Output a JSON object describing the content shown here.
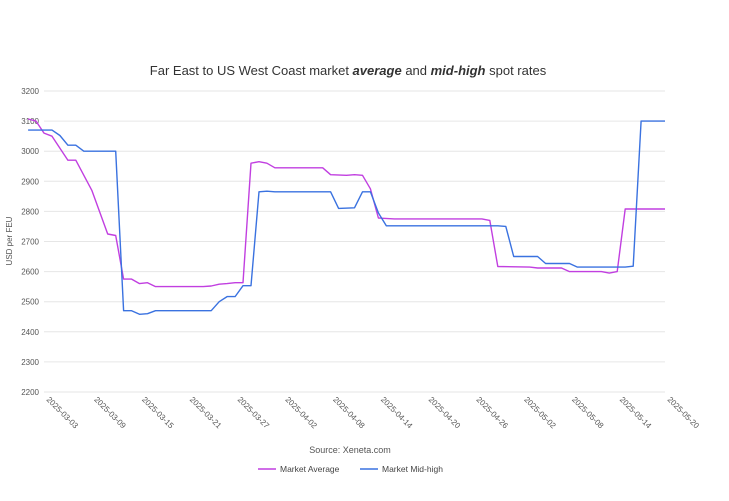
{
  "chart_data": {
    "type": "line",
    "title_parts": [
      {
        "text": "Far East to US West Coast market ",
        "style": "normal"
      },
      {
        "text": "average",
        "style": "bold-italic"
      },
      {
        "text": " and ",
        "style": "normal"
      },
      {
        "text": "mid-high",
        "style": "bold-italic"
      },
      {
        "text": " spot rates",
        "style": "normal"
      }
    ],
    "ylabel": "USD per FEU",
    "source": "Source: Xeneta.com",
    "ylim": [
      2200,
      3200
    ],
    "yticks": [
      "3200",
      "3100",
      "3000",
      "2900",
      "2800",
      "2700",
      "2600",
      "2500",
      "2400",
      "2300",
      "2200"
    ],
    "xlim": [
      "2025-03-03",
      "2025-05-20"
    ],
    "xticks": [
      "2025-03-03",
      "2025-03-09",
      "2025-03-15",
      "2025-03-21",
      "2025-03-27",
      "2025-04-02",
      "2025-04-08",
      "2025-04-14",
      "2025-04-20",
      "2025-04-26",
      "2025-05-02",
      "2025-05-08",
      "2025-05-14",
      "2025-05-20"
    ],
    "grid": true,
    "legend_position": "bottom-center",
    "series": [
      {
        "name": "Market Average",
        "color": "#c13fe0",
        "points": [
          [
            "2025-03-01",
            3107
          ],
          [
            "2025-03-02",
            3100
          ],
          [
            "2025-03-03",
            3060
          ],
          [
            "2025-03-04",
            3050
          ],
          [
            "2025-03-06",
            2970
          ],
          [
            "2025-03-07",
            2970
          ],
          [
            "2025-03-09",
            2870
          ],
          [
            "2025-03-11",
            2725
          ],
          [
            "2025-03-12",
            2720
          ],
          [
            "2025-03-13",
            2575
          ],
          [
            "2025-03-14",
            2575
          ],
          [
            "2025-03-15",
            2560
          ],
          [
            "2025-03-16",
            2563
          ],
          [
            "2025-03-17",
            2550
          ],
          [
            "2025-03-20",
            2550
          ],
          [
            "2025-03-23",
            2550
          ],
          [
            "2025-03-24",
            2552
          ],
          [
            "2025-03-25",
            2558
          ],
          [
            "2025-03-26",
            2560
          ],
          [
            "2025-03-27",
            2563
          ],
          [
            "2025-03-28",
            2563
          ],
          [
            "2025-03-29",
            2960
          ],
          [
            "2025-03-30",
            2965
          ],
          [
            "2025-03-31",
            2960
          ],
          [
            "2025-04-01",
            2945
          ],
          [
            "2025-04-07",
            2945
          ],
          [
            "2025-04-08",
            2922
          ],
          [
            "2025-04-10",
            2920
          ],
          [
            "2025-04-11",
            2922
          ],
          [
            "2025-04-12",
            2920
          ],
          [
            "2025-04-13",
            2875
          ],
          [
            "2025-04-14",
            2778
          ],
          [
            "2025-04-16",
            2775
          ],
          [
            "2025-04-27",
            2775
          ],
          [
            "2025-04-28",
            2770
          ],
          [
            "2025-04-29",
            2617
          ],
          [
            "2025-05-03",
            2615
          ],
          [
            "2025-05-04",
            2612
          ],
          [
            "2025-05-07",
            2612
          ],
          [
            "2025-05-08",
            2600
          ],
          [
            "2025-05-12",
            2600
          ],
          [
            "2025-05-13",
            2595
          ],
          [
            "2025-05-14",
            2600
          ],
          [
            "2025-05-15",
            2808
          ],
          [
            "2025-05-20",
            2808
          ]
        ]
      },
      {
        "name": "Market Mid-high",
        "color": "#3a72e0",
        "points": [
          [
            "2025-03-01",
            3070
          ],
          [
            "2025-03-04",
            3070
          ],
          [
            "2025-03-05",
            3052
          ],
          [
            "2025-03-06",
            3020
          ],
          [
            "2025-03-07",
            3020
          ],
          [
            "2025-03-08",
            3000
          ],
          [
            "2025-03-12",
            3000
          ],
          [
            "2025-03-13",
            2470
          ],
          [
            "2025-03-14",
            2470
          ],
          [
            "2025-03-15",
            2458
          ],
          [
            "2025-03-16",
            2460
          ],
          [
            "2025-03-17",
            2470
          ],
          [
            "2025-03-24",
            2470
          ],
          [
            "2025-03-25",
            2500
          ],
          [
            "2025-03-26",
            2517
          ],
          [
            "2025-03-27",
            2517
          ],
          [
            "2025-03-28",
            2553
          ],
          [
            "2025-03-29",
            2553
          ],
          [
            "2025-03-30",
            2865
          ],
          [
            "2025-03-31",
            2867
          ],
          [
            "2025-04-01",
            2865
          ],
          [
            "2025-04-08",
            2865
          ],
          [
            "2025-04-09",
            2810
          ],
          [
            "2025-04-11",
            2812
          ],
          [
            "2025-04-12",
            2865
          ],
          [
            "2025-04-13",
            2865
          ],
          [
            "2025-04-14",
            2795
          ],
          [
            "2025-04-15",
            2752
          ],
          [
            "2025-04-29",
            2752
          ],
          [
            "2025-04-30",
            2750
          ],
          [
            "2025-05-01",
            2650
          ],
          [
            "2025-05-04",
            2650
          ],
          [
            "2025-05-05",
            2627
          ],
          [
            "2025-05-08",
            2627
          ],
          [
            "2025-05-09",
            2615
          ],
          [
            "2025-05-15",
            2615
          ],
          [
            "2025-05-16",
            2618
          ],
          [
            "2025-05-17",
            3100
          ],
          [
            "2025-05-20",
            3100
          ]
        ]
      }
    ]
  }
}
